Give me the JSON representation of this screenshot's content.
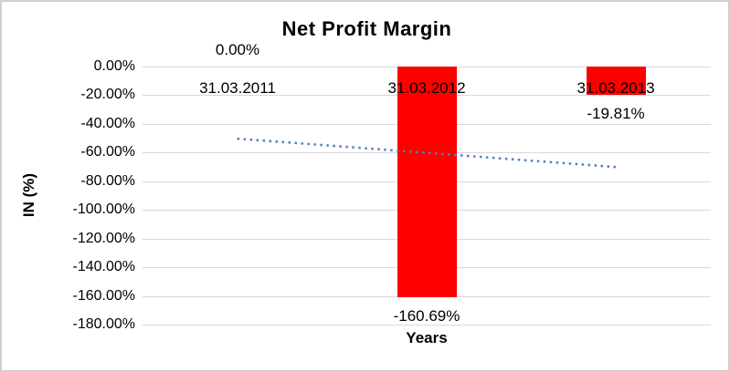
{
  "window": {
    "background": "#ffffff",
    "border_color": "#cfcfcf"
  },
  "chart_data": {
    "type": "bar",
    "title": "Net Profit Margin",
    "xlabel": "Years",
    "ylabel": "IN (%)",
    "categories": [
      "31.03.2011",
      "31.03.2012",
      "31.03.2013"
    ],
    "values": [
      0.0,
      -160.69,
      -19.81
    ],
    "data_labels": [
      "0.00%",
      "-160.69%",
      "-19.81%"
    ],
    "ylim": [
      -180,
      0
    ],
    "yticks": [
      0,
      -20,
      -40,
      -60,
      -80,
      -100,
      -120,
      -140,
      -160,
      -180
    ],
    "ytick_labels": [
      "0.00%",
      "-20.00%",
      "-40.00%",
      "-60.00%",
      "-80.00%",
      "-100.00%",
      "-120.00%",
      "-140.00%",
      "-160.00%",
      "-180.00%"
    ],
    "grid": true,
    "legend": "none",
    "bar_color": "#ff0000",
    "gridline_color": "#d9d9d9",
    "text_color": "#000000",
    "trendline": {
      "type": "linear",
      "style": "dotted",
      "color": "#4f81bd",
      "start_value": -50.3,
      "end_value": -70.1
    }
  }
}
